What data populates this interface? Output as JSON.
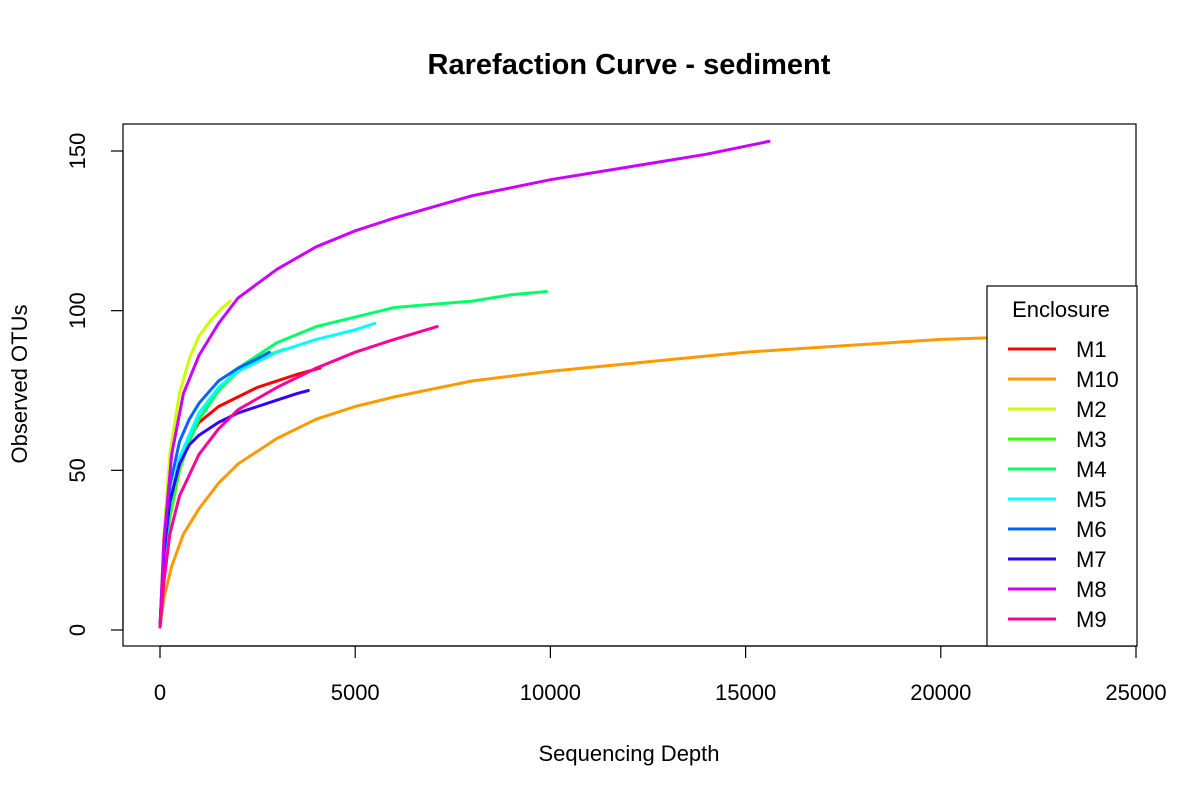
{
  "chart_data": {
    "type": "line",
    "title": "Rarefaction Curve - sediment",
    "xlabel": "Sequencing Depth",
    "ylabel": "Observed OTUs",
    "xlim": [
      0,
      25000
    ],
    "ylim": [
      0,
      155
    ],
    "xticks": [
      0,
      5000,
      10000,
      15000,
      20000,
      25000
    ],
    "yticks": [
      0,
      50,
      100,
      150
    ],
    "grid": false,
    "legend": {
      "title": "Enclosure",
      "position": "right"
    },
    "series": [
      {
        "name": "M1",
        "color": "#FF0000",
        "x": [
          1,
          100,
          250,
          500,
          750,
          1000,
          1500,
          2000,
          2500,
          3000,
          3500,
          4100
        ],
        "y": [
          1,
          22,
          40,
          52,
          60,
          65,
          70,
          73,
          76,
          78,
          80,
          82
        ]
      },
      {
        "name": "M10",
        "color": "#FF9900",
        "x": [
          1,
          100,
          300,
          600,
          1000,
          1500,
          2000,
          3000,
          4000,
          5000,
          6000,
          8000,
          10000,
          12500,
          15000,
          17500,
          20000,
          22500,
          25000
        ],
        "y": [
          1,
          10,
          20,
          30,
          38,
          46,
          52,
          60,
          66,
          70,
          73,
          78,
          81,
          84,
          87,
          89,
          91,
          92,
          94
        ]
      },
      {
        "name": "M2",
        "color": "#CCFF00",
        "x": [
          1,
          100,
          250,
          500,
          750,
          1000,
          1300,
          1600,
          1800
        ],
        "y": [
          1,
          30,
          55,
          74,
          85,
          92,
          97,
          101,
          103
        ]
      },
      {
        "name": "M3",
        "color": "#33FF00",
        "x": [
          1,
          100,
          250,
          500,
          750,
          1000,
          1500,
          2000,
          2500,
          3200
        ],
        "y": [
          1,
          18,
          35,
          50,
          59,
          66,
          75,
          81,
          85,
          88
        ]
      },
      {
        "name": "M4",
        "color": "#00FF66",
        "x": [
          1,
          100,
          250,
          500,
          1000,
          1500,
          2000,
          3000,
          4000,
          5000,
          6000,
          7000,
          8000,
          9000,
          9900
        ],
        "y": [
          1,
          20,
          38,
          52,
          66,
          75,
          82,
          90,
          95,
          98,
          101,
          102,
          103,
          105,
          106
        ]
      },
      {
        "name": "M5",
        "color": "#00FFFF",
        "x": [
          1,
          100,
          250,
          500,
          1000,
          1500,
          2000,
          3000,
          4000,
          5000,
          5500
        ],
        "y": [
          1,
          22,
          40,
          54,
          68,
          76,
          81,
          87,
          91,
          94,
          96
        ]
      },
      {
        "name": "M6",
        "color": "#0066FF",
        "x": [
          1,
          100,
          250,
          500,
          750,
          1000,
          1500,
          2000,
          2500,
          2800
        ],
        "y": [
          1,
          25,
          45,
          59,
          66,
          71,
          78,
          82,
          85,
          87
        ]
      },
      {
        "name": "M7",
        "color": "#3300FF",
        "x": [
          1,
          100,
          250,
          500,
          750,
          1000,
          1500,
          2000,
          2500,
          3000,
          3500,
          3800
        ],
        "y": [
          1,
          24,
          40,
          52,
          58,
          61,
          65,
          68,
          70,
          72,
          74,
          75
        ]
      },
      {
        "name": "M8",
        "color": "#CC00FF",
        "x": [
          1,
          100,
          300,
          600,
          1000,
          1500,
          2000,
          3000,
          4000,
          5000,
          6000,
          8000,
          10000,
          12000,
          14000,
          15600
        ],
        "y": [
          1,
          28,
          55,
          74,
          86,
          96,
          104,
          113,
          120,
          125,
          129,
          136,
          141,
          145,
          149,
          153
        ]
      },
      {
        "name": "M9",
        "color": "#FF0099",
        "x": [
          1,
          100,
          250,
          500,
          1000,
          1500,
          2000,
          3000,
          4000,
          5000,
          6000,
          7100
        ],
        "y": [
          1,
          15,
          30,
          42,
          55,
          63,
          69,
          76,
          82,
          87,
          91,
          95
        ]
      }
    ]
  }
}
